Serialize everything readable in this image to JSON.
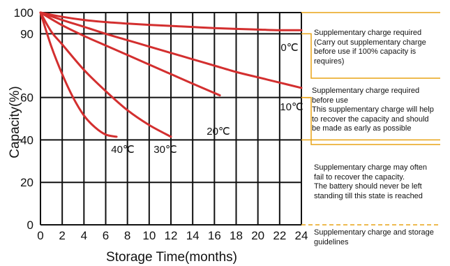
{
  "chart_data": {
    "type": "line",
    "xlabel": "Storage  Time(months)",
    "ylabel": "Capacity(%)",
    "x_ticks": [
      0,
      2,
      4,
      6,
      8,
      10,
      12,
      14,
      16,
      18,
      20,
      22,
      24
    ],
    "y_ticks": [
      0,
      20,
      40,
      60,
      90,
      100
    ],
    "xlim": [
      0,
      24
    ],
    "ylim": [
      0,
      100
    ],
    "grid": true,
    "series": [
      {
        "name": "0℃",
        "color": "#d32f2f",
        "x": [
          0,
          2,
          4,
          6,
          8,
          10,
          12,
          14,
          16,
          18,
          20,
          22,
          24
        ],
        "y": [
          100,
          98,
          96.5,
          95.5,
          94.8,
          94.2,
          93.7,
          93.2,
          92.7,
          92.3,
          92,
          91.7,
          91.7
        ]
      },
      {
        "name": "10℃",
        "color": "#d32f2f",
        "x": [
          0,
          2,
          4,
          6,
          8,
          10,
          12,
          14,
          16,
          18,
          20,
          22,
          24
        ],
        "y": [
          100,
          96.5,
          93.3,
          90,
          87,
          84,
          81,
          78,
          75,
          72,
          69.5,
          67,
          64.5
        ]
      },
      {
        "name": "20℃",
        "color": "#d32f2f",
        "x": [
          0,
          2,
          4,
          6,
          8,
          10,
          12,
          14,
          16.5
        ],
        "y": [
          100,
          94,
          89,
          84.5,
          80,
          75.5,
          71,
          66.5,
          61
        ]
      },
      {
        "name": "30℃",
        "color": "#d32f2f",
        "x": [
          0,
          1,
          2,
          4,
          6,
          8,
          10,
          12
        ],
        "y": [
          100,
          91,
          85,
          73,
          63,
          54,
          47,
          41.5
        ]
      },
      {
        "name": "40℃",
        "color": "#d32f2f",
        "x": [
          0,
          1,
          2,
          3,
          4,
          5,
          6,
          7
        ],
        "y": [
          100,
          84,
          71,
          60,
          51.5,
          46,
          42.5,
          41.5
        ]
      }
    ],
    "zone_notes": [
      "Supplementary charge required\n(Carry out supplementary charge\nbefore use if 100% capacity is\nrequires)",
      "Supplementary charge required\nbefore use\nThis supplementary charge will help\nto recover the capacity and should\nbe made as early as possible",
      "Supplementary charge may often\nfail to recover the capacity.\nThe battery should never be left\nstanding till this state is reached",
      "Supplementary charge and storage\nguidelines"
    ],
    "zone_line_color": "#e8a317"
  }
}
